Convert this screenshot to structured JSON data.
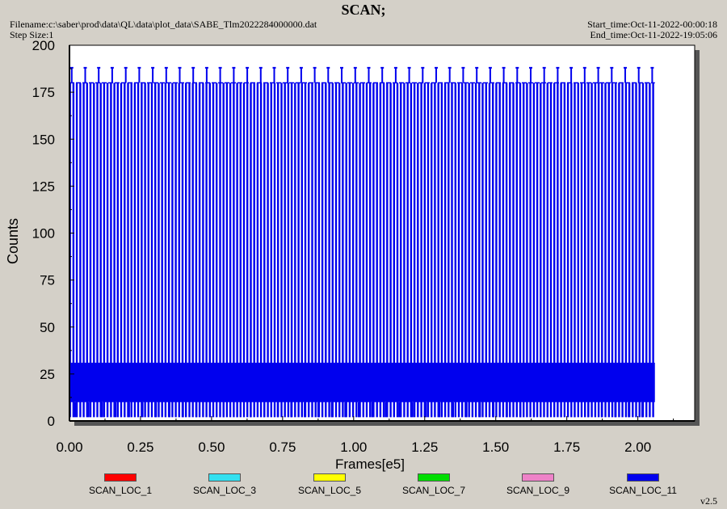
{
  "header": {
    "title": "SCAN;",
    "filename": "Filename:c:\\saber\\prod\\data\\QL\\data\\plot_data\\SABE_Tlm2022284000000.dat",
    "step_size": "Step Size:1",
    "start_time": "Start_time:Oct-11-2022-00:00:18",
    "end_time": "End_time:Oct-11-2022-19:05:06"
  },
  "footer": {
    "version": "v2.5"
  },
  "colors": {
    "background": "#d4d0c8",
    "plot_background": "#ffffff",
    "data": "#0000ee",
    "shadow": "#555555"
  },
  "chart_data": {
    "type": "line",
    "title": "SCAN;",
    "xlabel": "Frames[e5]",
    "ylabel": "Counts",
    "xlim": [
      0.0,
      2.2
    ],
    "ylim": [
      0,
      200
    ],
    "x_ticks": [
      0.0,
      0.25,
      0.5,
      0.75,
      1.0,
      1.25,
      1.5,
      1.75,
      2.0
    ],
    "x_tick_labels": [
      "0.00",
      "0.25",
      "0.50",
      "0.75",
      "1.00",
      "1.25",
      "1.50",
      "1.75",
      "2.00"
    ],
    "y_ticks": [
      0,
      25,
      50,
      75,
      100,
      125,
      150,
      175,
      200
    ],
    "y_tick_labels": [
      "0",
      "25",
      "50",
      "75",
      "100",
      "125",
      "150",
      "175",
      "200"
    ],
    "grid": false,
    "legend_placement": "bottom",
    "series": [
      {
        "name": "SCAN_LOC_1",
        "color": "#ff0000"
      },
      {
        "name": "SCAN_LOC_3",
        "color": "#33e0f0"
      },
      {
        "name": "SCAN_LOC_5",
        "color": "#ffff00"
      },
      {
        "name": "SCAN_LOC_7",
        "color": "#00dd00"
      },
      {
        "name": "SCAN_LOC_9",
        "color": "#ee82c8"
      },
      {
        "name": "SCAN_LOC_11",
        "color": "#0000ee"
      }
    ],
    "scan_pattern": {
      "x_start": 0.0,
      "x_end": 2.06,
      "sweep_max": 180,
      "sweep_min": 2,
      "peak_spikes": 188,
      "noise_band": [
        10,
        31
      ],
      "sweep_period": 0.012,
      "spike_period": 0.0475
    }
  }
}
